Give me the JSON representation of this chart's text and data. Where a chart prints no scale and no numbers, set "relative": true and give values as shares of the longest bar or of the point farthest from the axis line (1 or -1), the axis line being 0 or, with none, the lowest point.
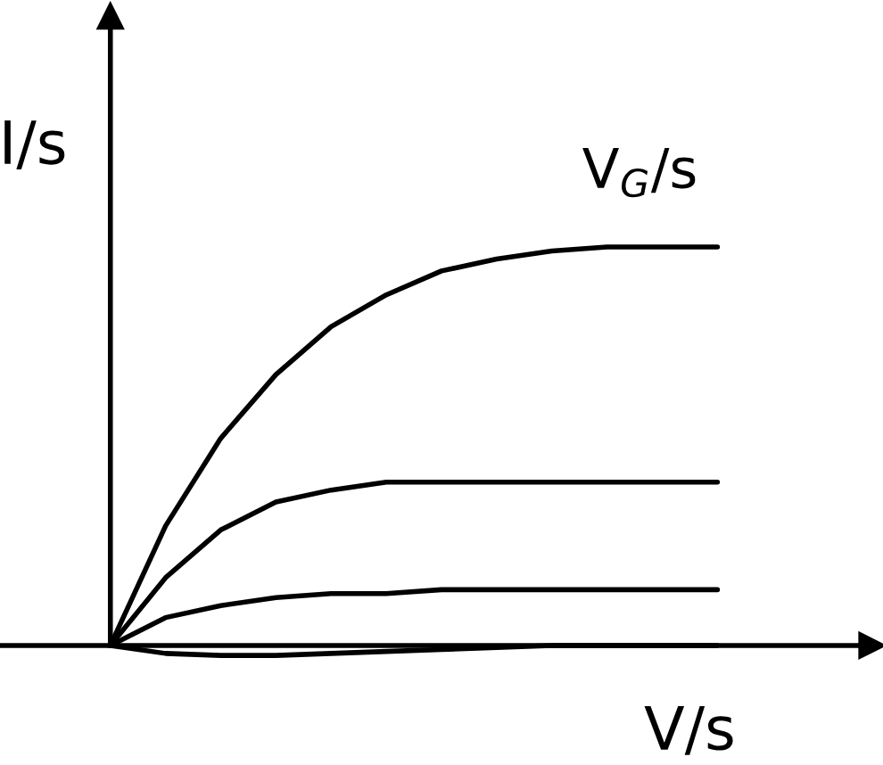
{
  "chart_data": {
    "type": "line",
    "relative": true,
    "xlabel": "V/s",
    "ylabel": "I/s",
    "annotations": [
      "V$_{G}$/s"
    ],
    "categories": [
      null,
      null,
      null,
      null,
      null,
      null,
      null,
      null,
      null,
      null,
      null,
      null
    ],
    "series": [
      {
        "color": "#000000",
        "values": [
          0,
          0.3,
          0.52,
          0.68,
          0.8,
          0.88,
          0.94,
          0.97,
          0.99,
          1,
          1,
          1
        ]
      },
      {
        "color": "#000000",
        "values": [
          0,
          0.17,
          0.29,
          0.36,
          0.39,
          0.41,
          0.41,
          0.41,
          0.41,
          0.41,
          0.41,
          0.41
        ]
      },
      {
        "color": "#000000",
        "values": [
          0,
          0.07,
          0.1,
          0.12,
          0.13,
          0.13,
          0.14,
          0.14,
          0.14,
          0.14,
          0.14,
          0.14
        ]
      },
      {
        "color": "#000000",
        "values": [
          0,
          -0.02,
          -0.025,
          -0.025,
          -0.02,
          -0.015,
          -0.01,
          -0.005,
          0,
          0,
          0,
          0
        ]
      }
    ],
    "legend": false,
    "marker": "none",
    "line_style": "solid"
  }
}
